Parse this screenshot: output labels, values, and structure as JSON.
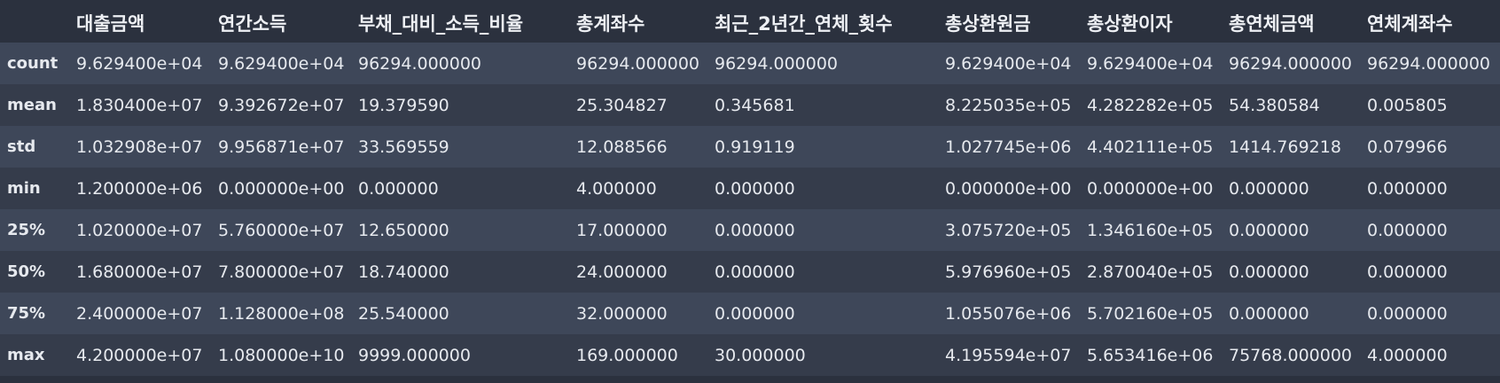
{
  "table": {
    "index_header": "",
    "columns": [
      "대출금액",
      "연간소득",
      "부채_대비_소득_비율",
      "총계좌수",
      "최근_2년간_연체_횟수",
      "총상환원금",
      "총상환이자",
      "총연체금액",
      "연체계좌수"
    ],
    "rows": [
      {
        "label": "count",
        "cells": [
          "9.629400e+04",
          "9.629400e+04",
          "96294.000000",
          "96294.000000",
          "96294.000000",
          "9.629400e+04",
          "9.629400e+04",
          "96294.000000",
          "96294.000000"
        ]
      },
      {
        "label": "mean",
        "cells": [
          "1.830400e+07",
          "9.392672e+07",
          "19.379590",
          "25.304827",
          "0.345681",
          "8.225035e+05",
          "4.282282e+05",
          "54.380584",
          "0.005805"
        ]
      },
      {
        "label": "std",
        "cells": [
          "1.032908e+07",
          "9.956871e+07",
          "33.569559",
          "12.088566",
          "0.919119",
          "1.027745e+06",
          "4.402111e+05",
          "1414.769218",
          "0.079966"
        ]
      },
      {
        "label": "min",
        "cells": [
          "1.200000e+06",
          "0.000000e+00",
          "0.000000",
          "4.000000",
          "0.000000",
          "0.000000e+00",
          "0.000000e+00",
          "0.000000",
          "0.000000"
        ]
      },
      {
        "label": "25%",
        "cells": [
          "1.020000e+07",
          "5.760000e+07",
          "12.650000",
          "17.000000",
          "0.000000",
          "3.075720e+05",
          "1.346160e+05",
          "0.000000",
          "0.000000"
        ]
      },
      {
        "label": "50%",
        "cells": [
          "1.680000e+07",
          "7.800000e+07",
          "18.740000",
          "24.000000",
          "0.000000",
          "5.976960e+05",
          "2.870040e+05",
          "0.000000",
          "0.000000"
        ]
      },
      {
        "label": "75%",
        "cells": [
          "2.400000e+07",
          "1.128000e+08",
          "25.540000",
          "32.000000",
          "0.000000",
          "1.055076e+06",
          "5.702160e+05",
          "0.000000",
          "0.000000"
        ]
      },
      {
        "label": "max",
        "cells": [
          "4.200000e+07",
          "1.080000e+10",
          "9999.000000",
          "169.000000",
          "30.000000",
          "4.195594e+07",
          "5.653416e+06",
          "75768.000000",
          "4.000000"
        ]
      }
    ]
  }
}
